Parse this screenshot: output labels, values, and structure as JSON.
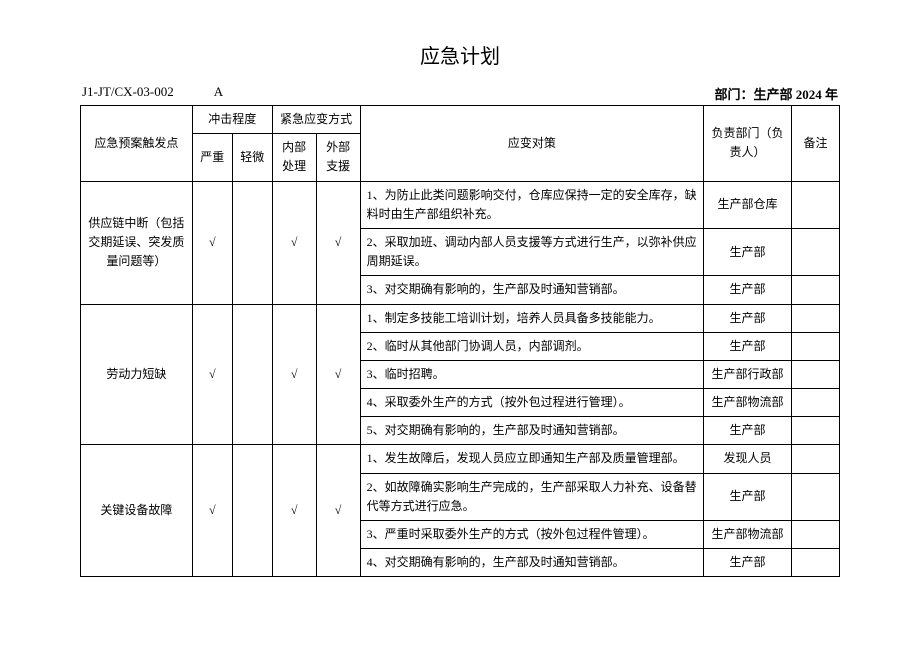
{
  "title": "应急计划",
  "doc_code": "J1-JT/CX-03-002",
  "revision": "A",
  "dept_label": "部门：生产部 2024 年",
  "headers": {
    "trigger": "应急预案触发点",
    "impact": "冲击程度",
    "method": "紧急应变方式",
    "counter": "应变对策",
    "dept": "负责部门（负责人）",
    "remark": "备注",
    "severe": "严重",
    "minor": "轻微",
    "internal": "内部处理",
    "external": "外部支援"
  },
  "checkmark": "√",
  "groups": [
    {
      "trigger": "供应链中断（包括交期延误、突发质量问题等）",
      "severe": "√",
      "minor": "",
      "internal": "√",
      "external": "√",
      "rows": [
        {
          "counter": "1、为防止此类问题影响交付，仓库应保持一定的安全库存，缺料时由生产部组织补充。",
          "dept": "生产部仓库",
          "remark": ""
        },
        {
          "counter": "2、采取加班、调动内部人员支援等方式进行生产，以弥补供应周期延误。",
          "dept": "生产部",
          "remark": ""
        },
        {
          "counter": "3、对交期确有影响的，生产部及时通知营销部。",
          "dept": "生产部",
          "remark": ""
        }
      ]
    },
    {
      "trigger": "劳动力短缺",
      "severe": "√",
      "minor": "",
      "internal": "√",
      "external": "√",
      "rows": [
        {
          "counter": "1、制定多技能工培训计划，培养人员具备多技能能力。",
          "dept": "生产部",
          "remark": ""
        },
        {
          "counter": "2、临时从其他部门协调人员，内部调剂。",
          "dept": "生产部",
          "remark": ""
        },
        {
          "counter": "3、临时招聘。",
          "dept": "生产部行政部",
          "remark": ""
        },
        {
          "counter": "4、采取委外生产的方式（按外包过程进行管理）。",
          "dept": "生产部物流部",
          "remark": ""
        },
        {
          "counter": "5、对交期确有影响的，生产部及时通知营销部。",
          "dept": "生产部",
          "remark": ""
        }
      ]
    },
    {
      "trigger": "关键设备故障",
      "severe": "√",
      "minor": "",
      "internal": "√",
      "external": "√",
      "rows": [
        {
          "counter": "1、发生故障后，发现人员应立即通知生产部及质量管理部。",
          "dept": "发现人员",
          "remark": ""
        },
        {
          "counter": "2、如故障确实影响生产完成的，生产部采取人力补充、设备替代等方式进行应急。",
          "dept": "生产部",
          "remark": ""
        },
        {
          "counter": "3、严重时采取委外生产的方式（按外包过程件管理）。",
          "dept": "生产部物流部",
          "remark": ""
        },
        {
          "counter": "4、对交期确有影响的，生产部及时通知营销部。",
          "dept": "生产部",
          "remark": ""
        }
      ]
    }
  ]
}
